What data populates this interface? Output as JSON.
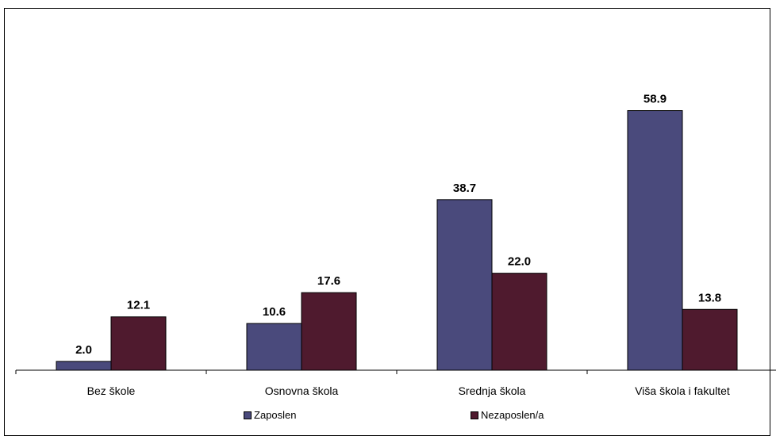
{
  "chart_data": {
    "type": "bar",
    "categories": [
      "Bez škole",
      "Osnovna škola",
      "Srednja škola",
      "Viša škola i fakultet"
    ],
    "series": [
      {
        "name": "Zaposlen",
        "values": [
          2.0,
          10.6,
          38.7,
          58.9
        ],
        "color": "#4A4A7C"
      },
      {
        "name": "Nezaposlen/a",
        "values": [
          12.1,
          17.6,
          22.0,
          13.8
        ],
        "color": "#4F1A2E"
      }
    ],
    "data_labels": [
      [
        "2.0",
        "10.6",
        "38.7",
        "58.9"
      ],
      [
        "12.1",
        "17.6",
        "22.0",
        "13.8"
      ]
    ],
    "ylim": [
      0,
      65
    ],
    "grid": false,
    "legend_position": "bottom"
  }
}
